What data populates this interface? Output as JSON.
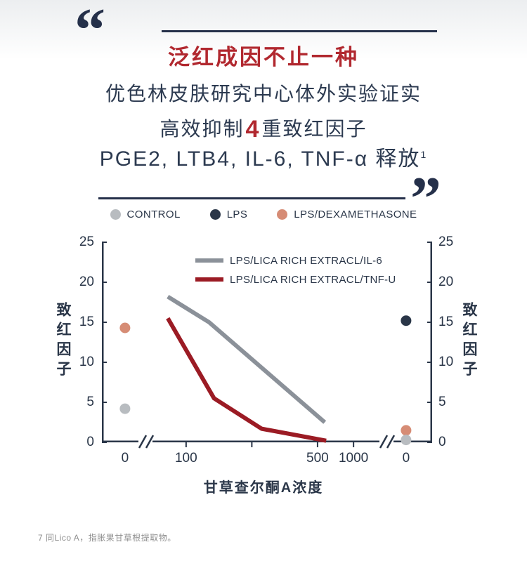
{
  "header": {
    "open_quote": "“",
    "close_quote": "”",
    "title": "泛红成因不止一种",
    "subtitle": "优色林皮肤研究中心体外实验证实",
    "claim_prefix": "高效抑制",
    "claim_number": "4",
    "claim_suffix": "重致红因子",
    "factors": "PGE2, LTB4, IL-6, TNF-α 释放",
    "factors_superscript": "1"
  },
  "chart_data": {
    "type": "line",
    "title": "",
    "xlabel": "甘草查尔酮A浓度",
    "ylabel_left": "致红因子",
    "ylabel_right": "致红因子",
    "ylim": [
      0,
      25
    ],
    "yticks": [
      0,
      5,
      10,
      15,
      20,
      25
    ],
    "xticks": [
      {
        "label": "0",
        "value": "left0"
      },
      {
        "label": "100",
        "value": 100
      },
      {
        "label": "500",
        "value": 500
      },
      {
        "label": "1000",
        "value": 1000
      },
      {
        "label": "0",
        "value": "right0"
      }
    ],
    "axis_break": true,
    "grid": false,
    "axis_color": "#2a3648",
    "top_legend": [
      {
        "label": "CONTROL",
        "color": "#b8bcc0"
      },
      {
        "label": "LPS",
        "color": "#2a3648"
      },
      {
        "label": "LPS/DEXAMETHASONE",
        "color": "#d68c75"
      }
    ],
    "series": [
      {
        "name": "LPS/LICA RICH EXTRACL/IL-6",
        "color": "#8b9199",
        "points": [
          [
            70,
            18.2
          ],
          [
            170,
            15.0
          ],
          [
            600,
            2.5
          ]
        ]
      },
      {
        "name": "LPS/LICA RICH EXTRACL/TNF-U",
        "color": "#9b1b24",
        "points": [
          [
            70,
            15.5
          ],
          [
            185,
            5.5
          ],
          [
            330,
            1.7
          ],
          [
            620,
            0.2
          ]
        ]
      }
    ],
    "dots": [
      {
        "group": "CONTROL",
        "x": "left0",
        "y": 4.2,
        "color": "#b8bcc0"
      },
      {
        "group": "LPS/DEXAMETHASONE",
        "x": "left0",
        "y": 14.3,
        "color": "#d68c75"
      },
      {
        "group": "LPS",
        "x": "right0",
        "y": 15.2,
        "color": "#2a3648"
      },
      {
        "group": "LPS/DEXAMETHASONE",
        "x": "right0",
        "y": 1.5,
        "color": "#d68c75"
      },
      {
        "group": "CONTROL",
        "x": "right0",
        "y": 0.3,
        "color": "#b8bcc0"
      }
    ]
  },
  "footnote": {
    "marker": "7",
    "text": "同Lico A，指胀果甘草根提取物。"
  },
  "colors": {
    "accent_red": "#b1282f",
    "dark_navy": "#2a3648",
    "line_gray": "#8b9199",
    "line_red": "#9b1b24",
    "dot_gray": "#b8bcc0",
    "dot_salmon": "#d68c75"
  }
}
